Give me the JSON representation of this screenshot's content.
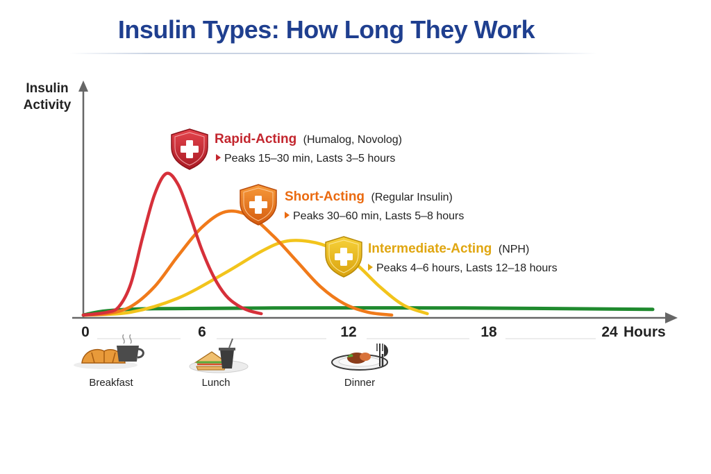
{
  "title": "Insulin Types: How Long They Work",
  "chart_data": {
    "type": "line",
    "ylabel": [
      "Insulin",
      "Activity"
    ],
    "xlabel": "Hours",
    "xlim": [
      0,
      24
    ],
    "x_ticks": [
      "0",
      "6",
      "12",
      "18",
      "24"
    ],
    "series": [
      {
        "name": "Rapid-Acting",
        "paren": "(Humalog, Novolog)",
        "detail": "Peaks 15–30 min, Lasts 3–5 hours",
        "color": "#d6303a",
        "points": [
          [
            0,
            0
          ],
          [
            1,
            0.02
          ],
          [
            1.5,
            0.06
          ],
          [
            2,
            0.22
          ],
          [
            2.5,
            0.55
          ],
          [
            3,
            0.85
          ],
          [
            3.5,
            1.0
          ],
          [
            4,
            0.92
          ],
          [
            4.5,
            0.7
          ],
          [
            5,
            0.46
          ],
          [
            5.5,
            0.27
          ],
          [
            6,
            0.14
          ],
          [
            6.5,
            0.07
          ],
          [
            7,
            0.03
          ],
          [
            7.5,
            0.01
          ]
        ]
      },
      {
        "name": "Short-Acting",
        "paren": "(Regular Insulin)",
        "detail": "Peaks 30–60 min, Lasts 5–8 hours",
        "color": "#f07a1a",
        "points": [
          [
            0,
            0
          ],
          [
            1,
            0.01
          ],
          [
            2,
            0.06
          ],
          [
            3,
            0.2
          ],
          [
            4,
            0.42
          ],
          [
            5,
            0.62
          ],
          [
            6,
            0.73
          ],
          [
            7,
            0.7
          ],
          [
            8,
            0.56
          ],
          [
            9,
            0.38
          ],
          [
            10,
            0.2
          ],
          [
            11,
            0.08
          ],
          [
            12,
            0.02
          ],
          [
            13,
            0.0
          ]
        ]
      },
      {
        "name": "Intermediate-Acting",
        "paren": "(NPH)",
        "detail": "Peaks 4–6 hours, Lasts 12–18 hours",
        "color": "#f2c41c",
        "points": [
          [
            0,
            0
          ],
          [
            2,
            0.02
          ],
          [
            4,
            0.12
          ],
          [
            6,
            0.3
          ],
          [
            7.5,
            0.45
          ],
          [
            8.5,
            0.52
          ],
          [
            9.5,
            0.52
          ],
          [
            10.5,
            0.47
          ],
          [
            11.5,
            0.36
          ],
          [
            12.5,
            0.2
          ],
          [
            13.5,
            0.07
          ],
          [
            14.5,
            0.01
          ]
        ]
      },
      {
        "name": "",
        "color": "#1f8a2e",
        "points": [
          [
            0,
            0
          ],
          [
            1,
            0.03
          ],
          [
            3,
            0.045
          ],
          [
            8,
            0.05
          ],
          [
            16,
            0.05
          ],
          [
            24,
            0.04
          ]
        ]
      }
    ],
    "meals": [
      {
        "label": "Breakfast",
        "icon": "breakfast-icon",
        "x": 1
      },
      {
        "label": "Lunch",
        "icon": "lunch-icon",
        "x": 5.6
      },
      {
        "label": "Dinner",
        "icon": "dinner-icon",
        "x": 11.5
      }
    ]
  }
}
